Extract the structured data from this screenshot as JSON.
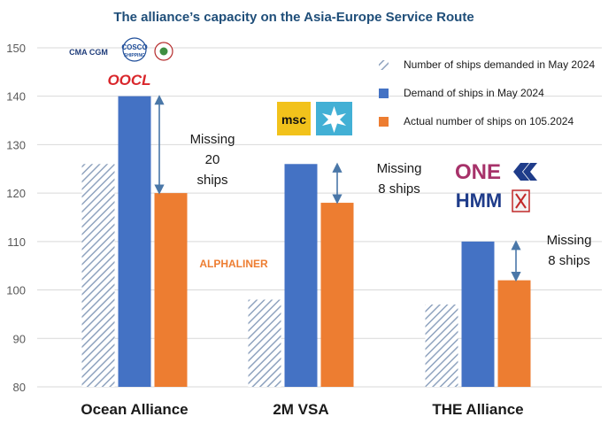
{
  "chart_data": {
    "type": "bar",
    "title": "The alliance’s capacity on the Asia-Europe Service Route",
    "categories": [
      "Ocean Alliance",
      "2M VSA",
      "THE Alliance"
    ],
    "series": [
      {
        "name": "Number of ships demanded in May 2024",
        "values": [
          126,
          98,
          97
        ],
        "color": "#b4c3d6",
        "pattern": "diagonal-hatch"
      },
      {
        "name": "Demand of ships in May 2024",
        "values": [
          140,
          126,
          110
        ],
        "color": "#4472c4"
      },
      {
        "name": "Actual number of ships on 105.2024",
        "values": [
          120,
          118,
          102
        ],
        "color": "#ed7d31"
      }
    ],
    "ylim": [
      80,
      152
    ],
    "yticks": [
      80,
      90,
      100,
      110,
      120,
      130,
      140,
      150
    ],
    "grid": true,
    "legend": "top-right",
    "annotations": [
      {
        "lines": [
          "Missing",
          "20",
          "ships"
        ],
        "from": 140,
        "to": 120
      },
      {
        "lines": [
          "Missing",
          "8 ships"
        ],
        "from": 126,
        "to": 118
      },
      {
        "lines": [
          "Missing",
          "8 ships"
        ],
        "from": 110,
        "to": 102
      }
    ],
    "watermark": "ALPHALINER",
    "logos": {
      "cma": "CMA CGM",
      "cosco": "COSCO",
      "cosco_sub": "SHIPPING",
      "oocl": "OOCL",
      "msc": "msc",
      "one": "ONE",
      "hmm": "HMM"
    }
  }
}
